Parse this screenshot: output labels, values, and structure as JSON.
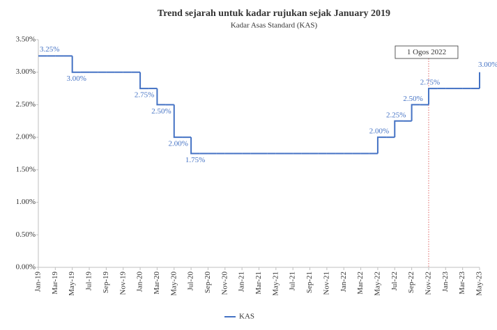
{
  "chart_data": {
    "type": "step",
    "title": "Trend sejarah untuk kadar rujukan sejak January 2019",
    "subtitle": "Kadar Asas Standard (KAS)",
    "categories": [
      "Jan-19",
      null,
      "Mar-19",
      null,
      "May-19",
      null,
      "Jul-19",
      null,
      "Sep-19",
      null,
      "Nov-19",
      null,
      "Jan-20",
      null,
      "Mar-20",
      null,
      "May-20",
      null,
      "Jul-20",
      null,
      "Sep-20",
      null,
      "Nov-20",
      null,
      "Jan-21",
      null,
      "Mar-21",
      null,
      "May-21",
      null,
      "Jul-21",
      null,
      "Sep-21",
      null,
      "Nov-21",
      null,
      "Jan-22",
      null,
      "Mar-22",
      null,
      "May-22",
      null,
      "Jul-22",
      null,
      "Sep-22",
      null,
      "Nov-22",
      null,
      "Jan-23",
      null,
      "Mar-23",
      null,
      "May-23"
    ],
    "series": [
      {
        "name": "KAS",
        "color": "#4472c4",
        "values": [
          3.25,
          3.25,
          3.25,
          3.25,
          3.0,
          3.0,
          3.0,
          3.0,
          3.0,
          3.0,
          3.0,
          3.0,
          2.75,
          2.75,
          2.5,
          2.5,
          2.0,
          2.0,
          1.75,
          1.75,
          1.75,
          1.75,
          1.75,
          1.75,
          1.75,
          1.75,
          1.75,
          1.75,
          1.75,
          1.75,
          1.75,
          1.75,
          1.75,
          1.75,
          1.75,
          1.75,
          1.75,
          1.75,
          1.75,
          1.75,
          2.0,
          2.0,
          2.25,
          2.25,
          2.5,
          2.5,
          2.75,
          2.75,
          2.75,
          2.75,
          2.75,
          2.75,
          3.0
        ],
        "value_labels": [
          "3.25%",
          null,
          null,
          null,
          "3.00%",
          null,
          null,
          null,
          null,
          null,
          null,
          null,
          "2.75%",
          null,
          "2.50%",
          null,
          "2.00%",
          null,
          "1.75%",
          null,
          null,
          null,
          null,
          null,
          null,
          null,
          null,
          null,
          null,
          null,
          null,
          null,
          null,
          null,
          null,
          null,
          null,
          null,
          null,
          null,
          "2.00%",
          null,
          "2.25%",
          null,
          "2.50%",
          null,
          "2.75%",
          null,
          null,
          null,
          null,
          null,
          "3.00%"
        ]
      }
    ],
    "ylim": [
      0,
      3.5
    ],
    "yticks": [
      {
        "value": 0,
        "label": "0.00%"
      },
      {
        "value": 0.5,
        "label": "0.50%"
      },
      {
        "value": 1,
        "label": "1.00%"
      },
      {
        "value": 1.5,
        "label": "1.50%"
      },
      {
        "value": 2,
        "label": "2.00%"
      },
      {
        "value": 2.5,
        "label": "2.50%"
      },
      {
        "value": 3,
        "label": "3.00%"
      },
      {
        "value": 3.5,
        "label": "3.50%"
      }
    ],
    "annotation": {
      "label": "1 Ogos 2022",
      "at": "Nov-22",
      "color": "#e06666"
    },
    "legend": "bottom"
  }
}
